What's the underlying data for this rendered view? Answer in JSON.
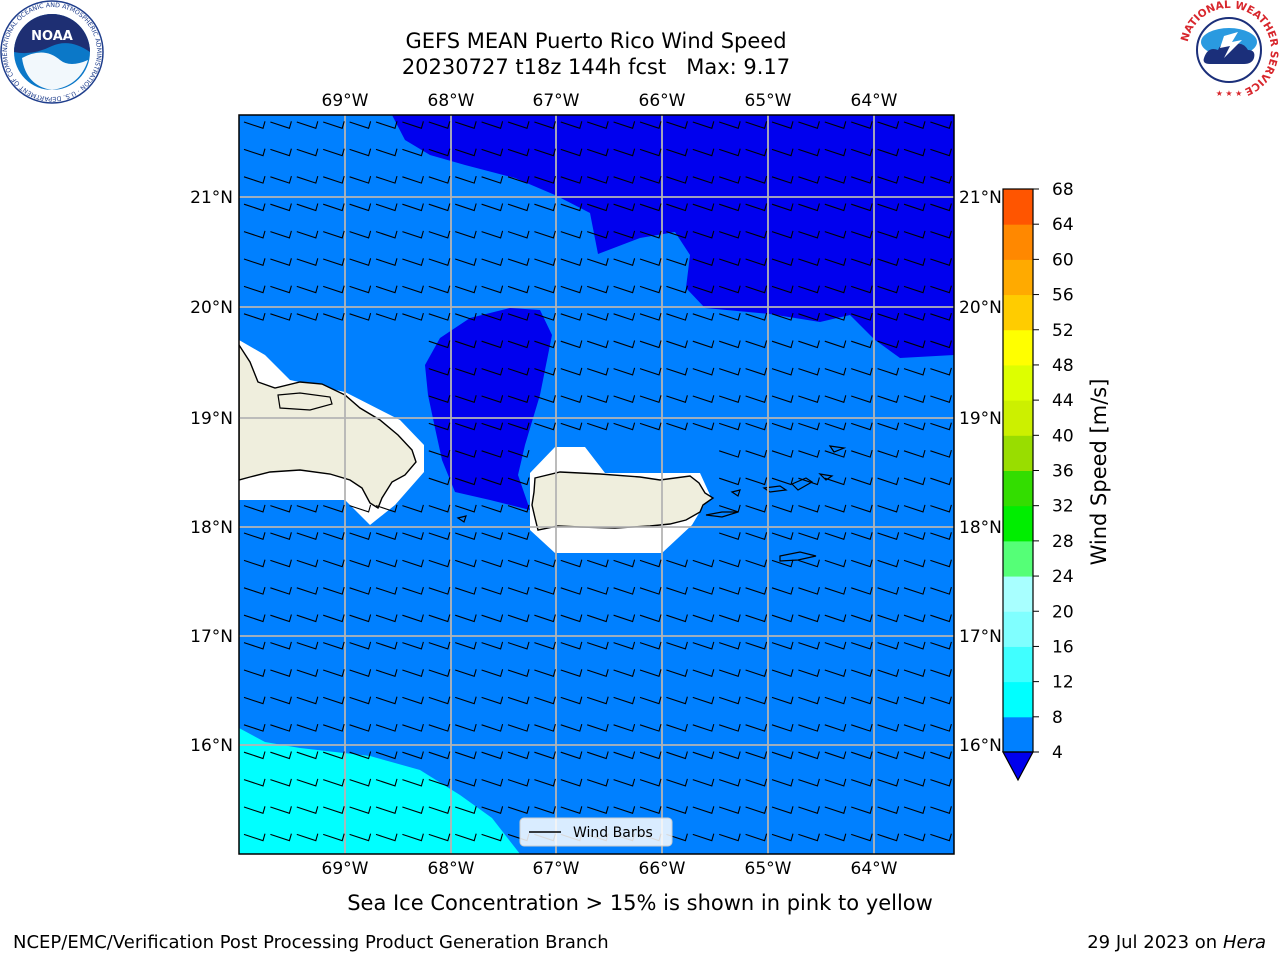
{
  "title": {
    "line1": "GEFS MEAN Puerto Rico Wind Speed",
    "line2": "20230727 t18z 144h fcst   Max: 9.17"
  },
  "map": {
    "lon_ticks": [
      "69°W",
      "68°W",
      "67°W",
      "66°W",
      "65°W",
      "64°W"
    ],
    "lat_ticks": [
      "21°N",
      "20°N",
      "19°N",
      "18°N",
      "17°N",
      "16°N"
    ],
    "legend_label": "Wind Barbs",
    "colors": {
      "band_4_8": "#0080ff",
      "band_under_4": "#0000ee",
      "band_8_12": "#00ffff",
      "land": "#efeedd",
      "masked": "#ffffff"
    }
  },
  "colorbar": {
    "label": "Wind Speed [m/s]",
    "ticks": [
      "4",
      "8",
      "12",
      "16",
      "20",
      "24",
      "28",
      "32",
      "36",
      "40",
      "44",
      "48",
      "52",
      "56",
      "60",
      "64",
      "68"
    ],
    "under_color": "#0000ee",
    "colors": [
      "#0080ff",
      "#00ffff",
      "#40ffff",
      "#80ffff",
      "#a8ffff",
      "#55ff77",
      "#00ee00",
      "#33dd00",
      "#99dd00",
      "#ccf000",
      "#ddff00",
      "#ffff00",
      "#ffcc00",
      "#ffaa00",
      "#ff8800",
      "#ff5500",
      "#ff2200",
      "#ff0000"
    ]
  },
  "caption": "Sea Ice Concentration > 15% is shown in pink to yellow",
  "footer": {
    "left": "NCEP/EMC/Verification Post Processing Product Generation Branch",
    "right_prefix": "29 Jul 2023 on ",
    "right_machine": "Hera"
  },
  "logos": {
    "noaa_text": "NOAA",
    "noaa_ring": "NATIONAL OCEANIC AND ATMOSPHERIC ADMINISTRATION · U.S. DEPARTMENT OF COMMERCE",
    "nws_ring": "NATIONAL WEATHER SERVICE"
  }
}
